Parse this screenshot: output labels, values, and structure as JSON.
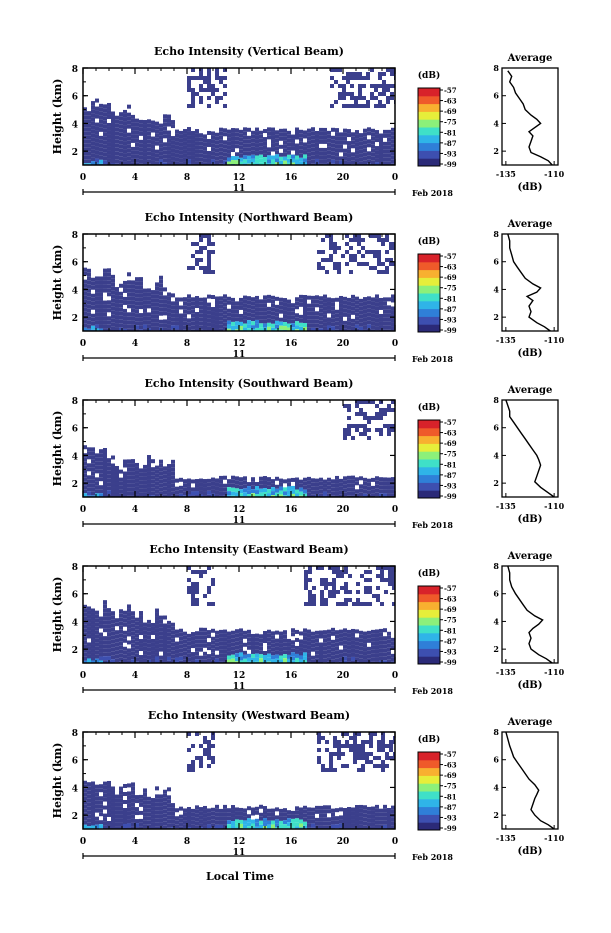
{
  "chart_data": [
    {
      "type": "heatmap",
      "title": "Echo Intensity (Vertical Beam)",
      "ylabel": "Height (km)",
      "ylim": [
        1,
        8
      ],
      "yticks": [
        "2",
        "4",
        "6",
        "8"
      ],
      "xticks": [
        "0",
        "4",
        "8",
        "12",
        "16",
        "20",
        "0"
      ],
      "xlim": [
        0,
        24
      ],
      "date_label": "11",
      "month_label": "Feb 2018",
      "cloud_top_km": 3.6,
      "upper_echo_range_hours": [
        [
          8,
          11
        ],
        [
          19,
          24
        ]
      ],
      "colorbar": {
        "unit": "(dB)",
        "ticks": [
          "-57",
          "-63",
          "-69",
          "-75",
          "-81",
          "-87",
          "-93",
          "-99"
        ]
      },
      "profile": {
        "title": "Average",
        "xlabel": "(dB)",
        "xticks": [
          "-135",
          "-110"
        ],
        "yticks": [
          "2",
          "4",
          "6",
          "8"
        ],
        "points": [
          [
            -111,
            1.0
          ],
          [
            -113,
            1.3
          ],
          [
            -117,
            1.6
          ],
          [
            -122,
            1.9
          ],
          [
            -123,
            2.3
          ],
          [
            -122,
            2.7
          ],
          [
            -121,
            3.1
          ],
          [
            -123,
            3.4
          ],
          [
            -120,
            3.7
          ],
          [
            -117,
            4.0
          ],
          [
            -119,
            4.3
          ],
          [
            -122,
            4.6
          ],
          [
            -125,
            5.0
          ],
          [
            -126,
            5.4
          ],
          [
            -128,
            5.8
          ],
          [
            -130,
            6.2
          ],
          [
            -131,
            6.6
          ],
          [
            -133,
            7.0
          ],
          [
            -132,
            7.4
          ],
          [
            -134,
            7.8
          ]
        ]
      }
    },
    {
      "type": "heatmap",
      "title": "Echo Intensity (Northward Beam)",
      "ylabel": "Height (km)",
      "ylim": [
        1,
        8
      ],
      "yticks": [
        "2",
        "4",
        "6",
        "8"
      ],
      "xticks": [
        "0",
        "4",
        "8",
        "12",
        "16",
        "20",
        "0"
      ],
      "xlim": [
        0,
        24
      ],
      "date_label": "11",
      "month_label": "Feb 2018",
      "cloud_top_km": 3.5,
      "upper_echo_range_hours": [
        [
          8,
          10
        ],
        [
          18,
          24
        ]
      ],
      "colorbar": {
        "unit": "(dB)",
        "ticks": [
          "-57",
          "-63",
          "-69",
          "-75",
          "-81",
          "-87",
          "-93",
          "-99"
        ]
      },
      "profile": {
        "title": "Average",
        "xlabel": "(dB)",
        "xticks": [
          "-135",
          "-110"
        ],
        "yticks": [
          "2",
          "4",
          "6",
          "8"
        ],
        "points": [
          [
            -112,
            1.0
          ],
          [
            -115,
            1.3
          ],
          [
            -119,
            1.6
          ],
          [
            -123,
            2.0
          ],
          [
            -122,
            2.4
          ],
          [
            -123,
            2.8
          ],
          [
            -121,
            3.2
          ],
          [
            -124,
            3.5
          ],
          [
            -119,
            3.8
          ],
          [
            -117,
            4.1
          ],
          [
            -121,
            4.4
          ],
          [
            -125,
            4.8
          ],
          [
            -127,
            5.2
          ],
          [
            -129,
            5.6
          ],
          [
            -131,
            6.0
          ],
          [
            -132,
            6.5
          ],
          [
            -133,
            7.0
          ],
          [
            -133,
            7.5
          ],
          [
            -134,
            8.0
          ]
        ]
      }
    },
    {
      "type": "heatmap",
      "title": "Echo Intensity (Southward Beam)",
      "ylabel": "Height (km)",
      "ylim": [
        1,
        8
      ],
      "yticks": [
        "2",
        "4",
        "6",
        "8"
      ],
      "xticks": [
        "0",
        "4",
        "8",
        "12",
        "16",
        "20",
        "0"
      ],
      "xlim": [
        0,
        24
      ],
      "date_label": "11",
      "month_label": "Feb 2018",
      "cloud_top_km": 2.4,
      "upper_echo_range_hours": [
        [
          20,
          24
        ]
      ],
      "colorbar": {
        "unit": "(dB)",
        "ticks": [
          "-57",
          "-63",
          "-69",
          "-75",
          "-81",
          "-87",
          "-93",
          "-99"
        ]
      },
      "profile": {
        "title": "Average",
        "xlabel": "(dB)",
        "xticks": [
          "-135",
          "-110"
        ],
        "yticks": [
          "2",
          "4",
          "6",
          "8"
        ],
        "points": [
          [
            -110,
            1.0
          ],
          [
            -113,
            1.3
          ],
          [
            -117,
            1.7
          ],
          [
            -120,
            2.1
          ],
          [
            -119,
            2.5
          ],
          [
            -118,
            2.9
          ],
          [
            -117,
            3.3
          ],
          [
            -118,
            3.7
          ],
          [
            -119,
            4.0
          ],
          [
            -121,
            4.4
          ],
          [
            -123,
            4.8
          ],
          [
            -125,
            5.2
          ],
          [
            -127,
            5.6
          ],
          [
            -129,
            6.0
          ],
          [
            -131,
            6.4
          ],
          [
            -133,
            6.8
          ],
          [
            -133,
            7.2
          ],
          [
            -134,
            7.6
          ],
          [
            -135,
            8.0
          ]
        ]
      }
    },
    {
      "type": "heatmap",
      "title": "Echo Intensity (Eastward Beam)",
      "ylabel": "Height (km)",
      "ylim": [
        1,
        8
      ],
      "yticks": [
        "2",
        "4",
        "6",
        "8"
      ],
      "xticks": [
        "0",
        "4",
        "8",
        "12",
        "16",
        "20",
        "0"
      ],
      "xlim": [
        0,
        24
      ],
      "date_label": "11",
      "month_label": "Feb 2018",
      "cloud_top_km": 3.4,
      "upper_echo_range_hours": [
        [
          8,
          10
        ],
        [
          17,
          24
        ]
      ],
      "colorbar": {
        "unit": "(dB)",
        "ticks": [
          "-57",
          "-63",
          "-69",
          "-75",
          "-81",
          "-87",
          "-93",
          "-99"
        ]
      },
      "profile": {
        "title": "Average",
        "xlabel": "(dB)",
        "xticks": [
          "-135",
          "-110"
        ],
        "yticks": [
          "2",
          "4",
          "6",
          "8"
        ],
        "points": [
          [
            -111,
            1.0
          ],
          [
            -114,
            1.3
          ],
          [
            -118,
            1.6
          ],
          [
            -122,
            2.0
          ],
          [
            -123,
            2.4
          ],
          [
            -122,
            2.8
          ],
          [
            -123,
            3.2
          ],
          [
            -121,
            3.5
          ],
          [
            -118,
            3.8
          ],
          [
            -116,
            4.1
          ],
          [
            -120,
            4.4
          ],
          [
            -124,
            4.8
          ],
          [
            -126,
            5.2
          ],
          [
            -128,
            5.6
          ],
          [
            -130,
            6.0
          ],
          [
            -132,
            6.5
          ],
          [
            -133,
            7.0
          ],
          [
            -133,
            7.5
          ],
          [
            -134,
            8.0
          ]
        ]
      }
    },
    {
      "type": "heatmap",
      "title": "Echo Intensity (Westward Beam)",
      "ylabel": "Height (km)",
      "ylim": [
        1,
        8
      ],
      "yticks": [
        "2",
        "4",
        "6",
        "8"
      ],
      "xticks": [
        "0",
        "4",
        "8",
        "12",
        "16",
        "20",
        "0"
      ],
      "xlim": [
        0,
        24
      ],
      "date_label": "11",
      "month_label": "Feb 2018",
      "cloud_top_km": 2.6,
      "upper_echo_range_hours": [
        [
          8,
          10
        ],
        [
          18,
          24
        ]
      ],
      "colorbar": {
        "unit": "(dB)",
        "ticks": [
          "-57",
          "-63",
          "-69",
          "-75",
          "-81",
          "-87",
          "-93",
          "-99"
        ]
      },
      "profile": {
        "title": "Average",
        "xlabel": "(dB)",
        "xticks": [
          "-135",
          "-110"
        ],
        "yticks": [
          "2",
          "4",
          "6",
          "8"
        ],
        "points": [
          [
            -110,
            1.0
          ],
          [
            -113,
            1.3
          ],
          [
            -117,
            1.6
          ],
          [
            -120,
            2.0
          ],
          [
            -122,
            2.4
          ],
          [
            -121,
            2.8
          ],
          [
            -120,
            3.2
          ],
          [
            -119,
            3.5
          ],
          [
            -118,
            3.8
          ],
          [
            -120,
            4.2
          ],
          [
            -123,
            4.6
          ],
          [
            -125,
            5.0
          ],
          [
            -127,
            5.4
          ],
          [
            -129,
            5.8
          ],
          [
            -131,
            6.2
          ],
          [
            -132,
            6.6
          ],
          [
            -133,
            7.0
          ],
          [
            -134,
            7.5
          ],
          [
            -135,
            8.0
          ]
        ]
      }
    }
  ],
  "footer": {
    "xlabel": "Local Time"
  },
  "colors": {
    "background_echo": "#3b3f8c",
    "colormap": [
      "#2b2a78",
      "#3d4fb0",
      "#2f7fd8",
      "#2fb4e8",
      "#3fe0c8",
      "#8cf07a",
      "#e6ee3a",
      "#f8b030",
      "#ef5a2a",
      "#d8222a"
    ]
  }
}
